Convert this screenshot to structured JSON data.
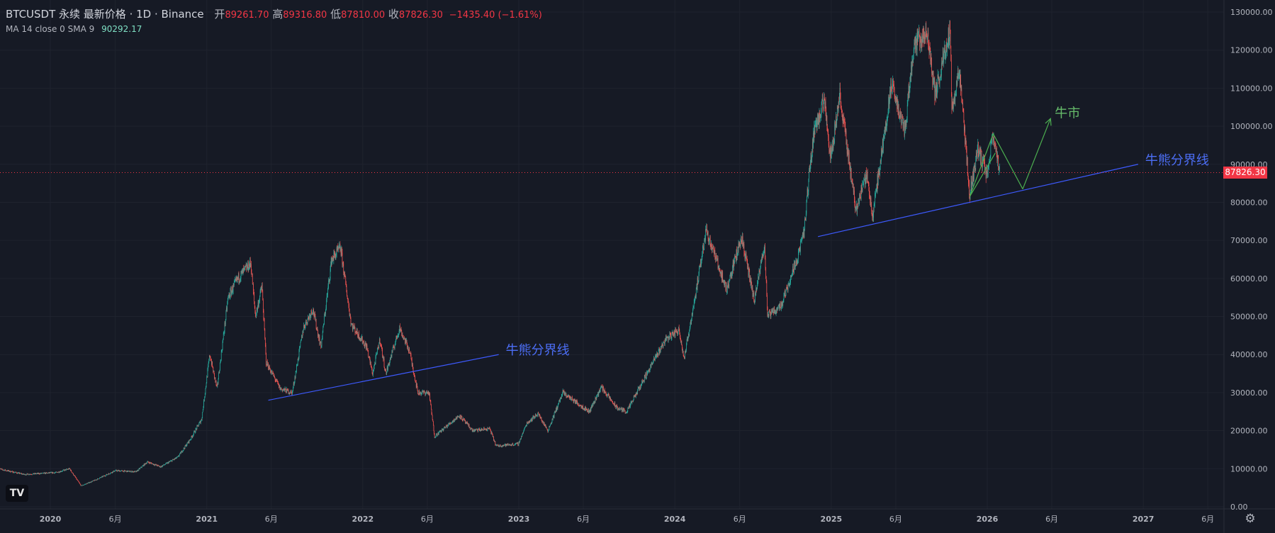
{
  "header": {
    "symbol": "BTCUSDT 永续 最新价格 · 1D · Binance",
    "open_label": "开",
    "open": "89261.70",
    "high_label": "高",
    "high": "89316.80",
    "low_label": "低",
    "low": "87810.00",
    "close_label": "收",
    "close": "87826.30",
    "change": "−1435.40 (−1.61%)"
  },
  "indicator": {
    "label": "MA 14 close 0 SMA 9",
    "value": "90292.17"
  },
  "logo_text": "TV",
  "settings_icon": "gear-icon",
  "colors": {
    "background": "#161a25",
    "up": "#26a69a",
    "down": "#ef5350",
    "trendline": "#3d5afe",
    "annotation_text": "#4c6ef5",
    "bull_arrow": "#4caf50",
    "bull_text": "#66bb6a",
    "price_line": "#f23645"
  },
  "chart_data": {
    "type": "line",
    "title": "BTCUSDT 永续 最新价格 · 1D · Binance",
    "y_axis": {
      "ticks": [
        "0.00",
        "10000.00",
        "20000.00",
        "30000.00",
        "40000.00",
        "50000.00",
        "60000.00",
        "70000.00",
        "80000.00",
        "90000.00",
        "100000.00",
        "110000.00",
        "120000.00",
        "130000.00"
      ],
      "ylim": [
        0,
        130000
      ]
    },
    "x_axis": {
      "ticks": [
        {
          "date": "2020-01-01",
          "label": "2020",
          "bold": true
        },
        {
          "date": "2020-06-01",
          "label": "6月"
        },
        {
          "date": "2021-01-01",
          "label": "2021",
          "bold": true
        },
        {
          "date": "2021-06-01",
          "label": "6月"
        },
        {
          "date": "2022-01-01",
          "label": "2022",
          "bold": true
        },
        {
          "date": "2022-06-01",
          "label": "6月"
        },
        {
          "date": "2023-01-01",
          "label": "2023",
          "bold": true
        },
        {
          "date": "2023-06-01",
          "label": "6月"
        },
        {
          "date": "2024-01-01",
          "label": "2024",
          "bold": true
        },
        {
          "date": "2024-06-01",
          "label": "6月"
        },
        {
          "date": "2025-01-01",
          "label": "2025",
          "bold": true
        },
        {
          "date": "2025-06-01",
          "label": "6月"
        },
        {
          "date": "2026-01-01",
          "label": "2026",
          "bold": true
        },
        {
          "date": "2026-06-01",
          "label": "6月"
        },
        {
          "date": "2027-01-01",
          "label": "2027",
          "bold": true
        },
        {
          "date": "2027-06-01",
          "label": "6月"
        }
      ]
    },
    "series": [
      {
        "values": [
          [
            "2019-09-01",
            10000
          ],
          [
            "2019-11-01",
            8500
          ],
          [
            "2020-01-15",
            9000
          ],
          [
            "2020-02-15",
            10000
          ],
          [
            "2020-03-13",
            5500
          ],
          [
            "2020-04-15",
            7000
          ],
          [
            "2020-06-01",
            9500
          ],
          [
            "2020-07-20",
            9200
          ],
          [
            "2020-08-15",
            11800
          ],
          [
            "2020-09-15",
            10500
          ],
          [
            "2020-10-25",
            13000
          ],
          [
            "2020-11-25",
            18000
          ],
          [
            "2020-12-20",
            23000
          ],
          [
            "2021-01-08",
            40000
          ],
          [
            "2021-01-25",
            31000
          ],
          [
            "2021-02-20",
            55000
          ],
          [
            "2021-03-15",
            60000
          ],
          [
            "2021-04-14",
            64000
          ],
          [
            "2021-04-25",
            50000
          ],
          [
            "2021-05-10",
            58000
          ],
          [
            "2021-05-20",
            38000
          ],
          [
            "2021-06-22",
            31000
          ],
          [
            "2021-07-20",
            30000
          ],
          [
            "2021-08-15",
            47000
          ],
          [
            "2021-09-06",
            52000
          ],
          [
            "2021-09-25",
            42000
          ],
          [
            "2021-10-20",
            65000
          ],
          [
            "2021-11-10",
            68000
          ],
          [
            "2021-12-05",
            48000
          ],
          [
            "2022-01-10",
            42000
          ],
          [
            "2022-01-24",
            35000
          ],
          [
            "2022-02-10",
            44000
          ],
          [
            "2022-02-24",
            35000
          ],
          [
            "2022-03-28",
            47000
          ],
          [
            "2022-04-20",
            41000
          ],
          [
            "2022-05-10",
            30000
          ],
          [
            "2022-06-05",
            30000
          ],
          [
            "2022-06-18",
            18500
          ],
          [
            "2022-08-15",
            24000
          ],
          [
            "2022-09-15",
            20000
          ],
          [
            "2022-10-25",
            20500
          ],
          [
            "2022-11-09",
            16000
          ],
          [
            "2022-12-31",
            16500
          ],
          [
            "2023-01-20",
            22000
          ],
          [
            "2023-02-15",
            24500
          ],
          [
            "2023-03-10",
            20000
          ],
          [
            "2023-04-14",
            30000
          ],
          [
            "2023-06-15",
            25000
          ],
          [
            "2023-07-13",
            31500
          ],
          [
            "2023-08-18",
            26000
          ],
          [
            "2023-09-11",
            25000
          ],
          [
            "2023-10-25",
            34500
          ],
          [
            "2023-12-10",
            44000
          ],
          [
            "2024-01-11",
            46500
          ],
          [
            "2024-01-23",
            39000
          ],
          [
            "2024-02-28",
            62000
          ],
          [
            "2024-03-14",
            73000
          ],
          [
            "2024-05-01",
            57000
          ],
          [
            "2024-06-05",
            71000
          ],
          [
            "2024-07-05",
            54000
          ],
          [
            "2024-07-29",
            69000
          ],
          [
            "2024-08-05",
            50000
          ],
          [
            "2024-09-06",
            53000
          ],
          [
            "2024-10-15",
            66000
          ],
          [
            "2024-10-29",
            72000
          ],
          [
            "2024-11-12",
            89000
          ],
          [
            "2024-11-22",
            99000
          ],
          [
            "2024-12-17",
            107000
          ],
          [
            "2024-12-30",
            92000
          ],
          [
            "2025-01-21",
            108000
          ],
          [
            "2025-02-28",
            78000
          ],
          [
            "2025-03-25",
            88000
          ],
          [
            "2025-04-07",
            76000
          ],
          [
            "2025-05-22",
            111000
          ],
          [
            "2025-06-22",
            99000
          ],
          [
            "2025-07-14",
            122000
          ],
          [
            "2025-08-14",
            124000
          ],
          [
            "2025-09-01",
            108000
          ],
          [
            "2025-10-06",
            126000
          ],
          [
            "2025-10-10",
            104000
          ],
          [
            "2025-10-27",
            115000
          ],
          [
            "2025-11-21",
            82000
          ],
          [
            "2025-12-10",
            94000
          ],
          [
            "2025-12-31",
            87500
          ],
          [
            "2026-01-14",
            97000
          ],
          [
            "2026-01-30",
            88000
          ]
        ]
      }
    ],
    "last_price": {
      "value": 87826.3,
      "label": "87826.30"
    },
    "annotations": [
      {
        "type": "trendline",
        "from": [
          "2021-05-25",
          28000
        ],
        "to": [
          "2022-11-15",
          40000
        ],
        "label": "牛熊分界线"
      },
      {
        "type": "trendline",
        "from": [
          "2024-12-01",
          71000
        ],
        "to": [
          "2026-12-20",
          90000
        ],
        "label": "牛熊分界线"
      },
      {
        "type": "path",
        "points": [
          [
            "2025-11-21",
            81500
          ],
          [
            "2026-01-15",
            98000
          ],
          [
            "2026-03-25",
            83500
          ]
        ]
      },
      {
        "type": "path",
        "points": [
          [
            "2025-11-21",
            81500
          ],
          [
            "2026-01-20",
            93000
          ]
        ]
      },
      {
        "type": "arrow",
        "from": [
          "2026-03-25",
          83500
        ],
        "to": [
          "2026-05-29",
          102000
        ],
        "label": "牛市"
      }
    ]
  }
}
